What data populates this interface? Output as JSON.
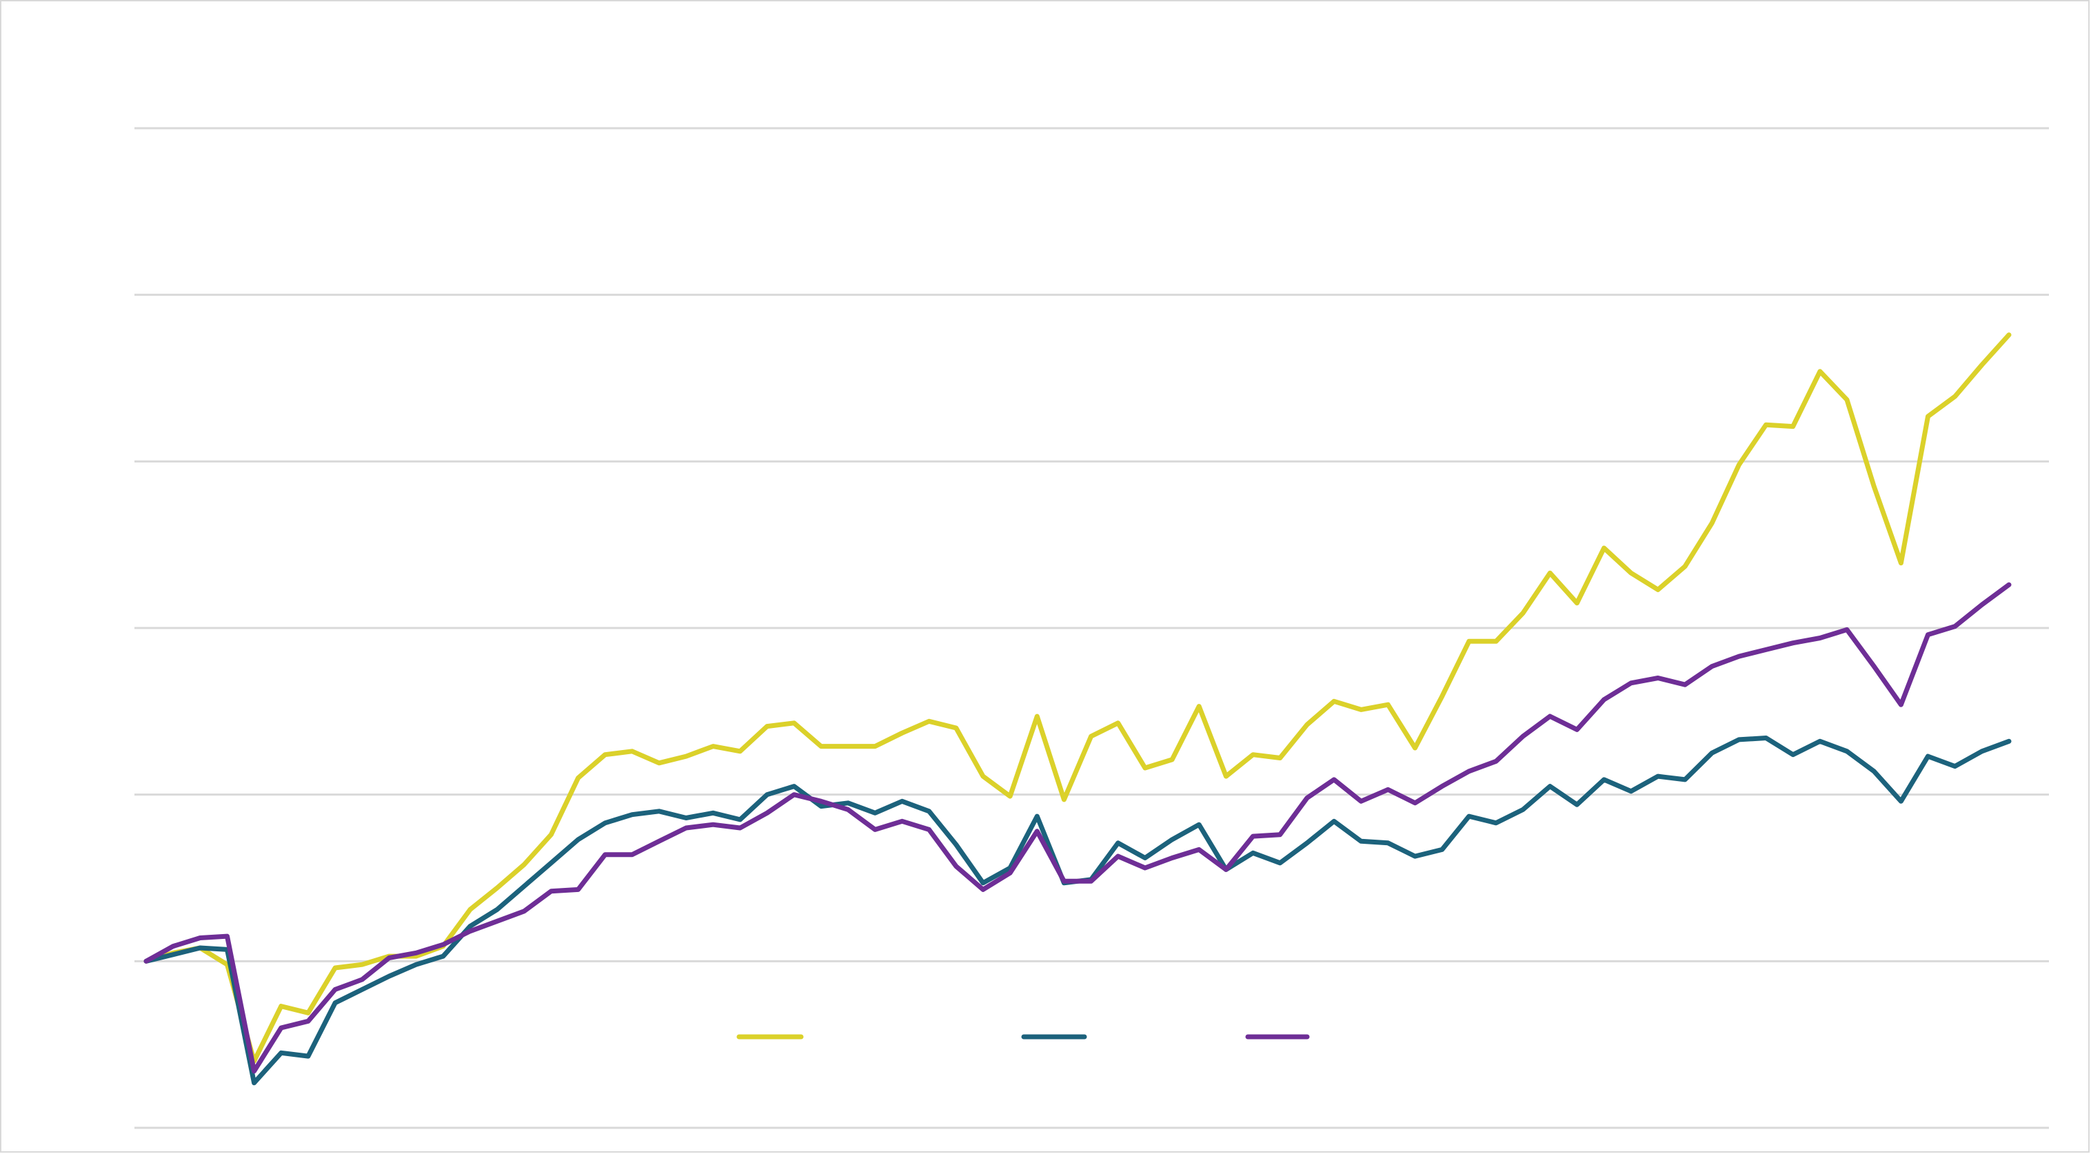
{
  "chart_data": {
    "type": "line",
    "title": "",
    "xlabel": "",
    "ylabel": "",
    "ylim": [
      0,
      6
    ],
    "grid": true,
    "legend_position": "bottom-center",
    "series": [
      {
        "color": "#dbd12a",
        "values": [
          1.0,
          1.05,
          1.08,
          0.98,
          0.4,
          0.73,
          0.69,
          0.96,
          0.98,
          1.03,
          1.03,
          1.09,
          1.31,
          1.44,
          1.58,
          1.76,
          2.1,
          2.24,
          2.26,
          2.19,
          2.23,
          2.29,
          2.26,
          2.41,
          2.43,
          2.29,
          2.29,
          2.29,
          2.37,
          2.44,
          2.4,
          2.11,
          1.99,
          2.47,
          1.97,
          2.35,
          2.43,
          2.16,
          2.21,
          2.53,
          2.11,
          2.24,
          2.22,
          2.42,
          2.56,
          2.51,
          2.54,
          2.28,
          2.59,
          2.92,
          2.92,
          3.09,
          3.33,
          3.15,
          3.48,
          3.33,
          3.23,
          3.37,
          3.63,
          3.98,
          4.22,
          4.21,
          4.54,
          4.37,
          3.85,
          3.39,
          4.27,
          4.39,
          4.58,
          4.76
        ]
      },
      {
        "color": "#1c627c",
        "values": [
          1.0,
          1.04,
          1.08,
          1.07,
          0.27,
          0.45,
          0.43,
          0.75,
          0.83,
          0.91,
          0.98,
          1.03,
          1.21,
          1.31,
          1.45,
          1.59,
          1.73,
          1.83,
          1.88,
          1.9,
          1.86,
          1.89,
          1.85,
          2.0,
          2.05,
          1.93,
          1.95,
          1.89,
          1.96,
          1.9,
          1.7,
          1.47,
          1.56,
          1.87,
          1.47,
          1.49,
          1.71,
          1.62,
          1.73,
          1.82,
          1.55,
          1.65,
          1.59,
          1.71,
          1.84,
          1.72,
          1.71,
          1.63,
          1.67,
          1.87,
          1.83,
          1.91,
          2.05,
          1.94,
          2.09,
          2.02,
          2.11,
          2.09,
          2.25,
          2.33,
          2.34,
          2.24,
          2.32,
          2.26,
          2.14,
          1.96,
          2.23,
          2.17,
          2.26,
          2.32
        ]
      },
      {
        "color": "#6e2e96",
        "values": [
          1.0,
          1.09,
          1.14,
          1.15,
          0.34,
          0.6,
          0.64,
          0.83,
          0.89,
          1.02,
          1.05,
          1.1,
          1.18,
          1.24,
          1.3,
          1.42,
          1.43,
          1.64,
          1.64,
          1.72,
          1.8,
          1.82,
          1.8,
          1.89,
          2.0,
          1.96,
          1.91,
          1.79,
          1.84,
          1.79,
          1.57,
          1.43,
          1.53,
          1.78,
          1.48,
          1.48,
          1.63,
          1.56,
          1.62,
          1.67,
          1.55,
          1.75,
          1.76,
          1.98,
          2.09,
          1.96,
          2.03,
          1.95,
          2.05,
          2.14,
          2.2,
          2.35,
          2.47,
          2.39,
          2.57,
          2.67,
          2.7,
          2.66,
          2.77,
          2.83,
          2.87,
          2.91,
          2.94,
          2.99,
          2.77,
          2.54,
          2.96,
          3.01,
          3.14,
          3.26
        ]
      }
    ]
  }
}
